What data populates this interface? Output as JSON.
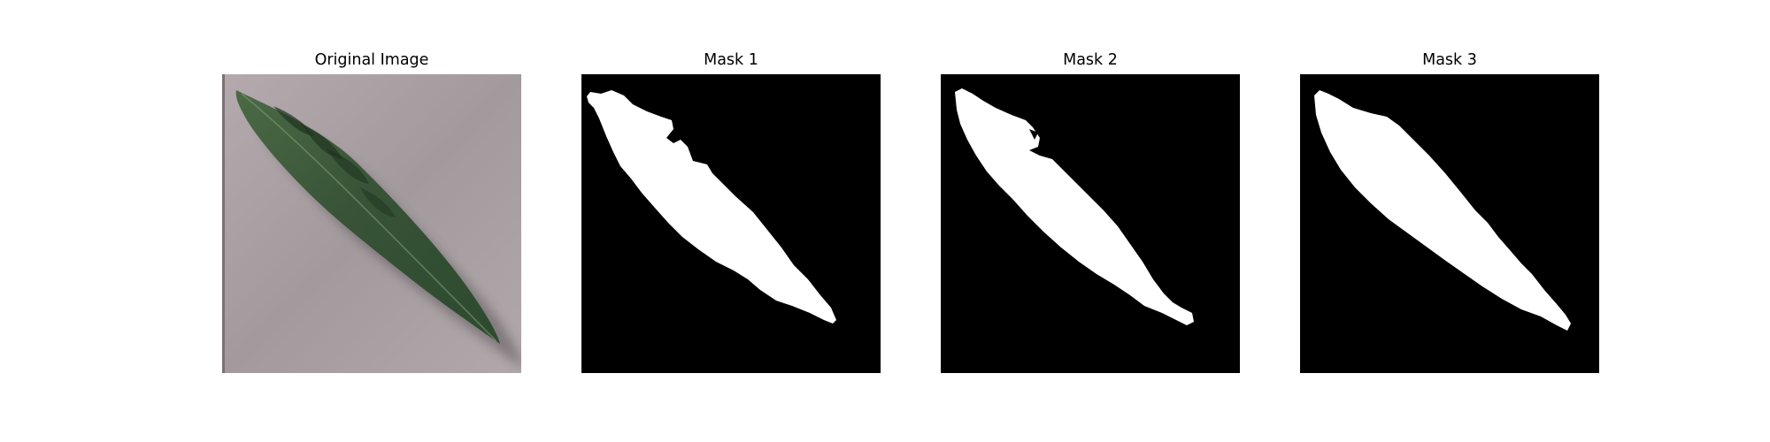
{
  "figure": {
    "panels": [
      {
        "title": "Original Image",
        "kind": "photo",
        "subject": "leaf-photo"
      },
      {
        "title": "Mask 1",
        "kind": "mask",
        "mask_color": "#ffffff",
        "background_color": "#000000"
      },
      {
        "title": "Mask 2",
        "kind": "mask",
        "mask_color": "#ffffff",
        "background_color": "#000000"
      },
      {
        "title": "Mask 3",
        "kind": "mask",
        "mask_color": "#ffffff",
        "background_color": "#000000"
      }
    ],
    "colors": {
      "paper": "#a89ea1",
      "leaf": "#3f5a3a",
      "leaf_dark": "#243a24",
      "mask": "#ffffff",
      "mask_background": "#000000"
    }
  }
}
